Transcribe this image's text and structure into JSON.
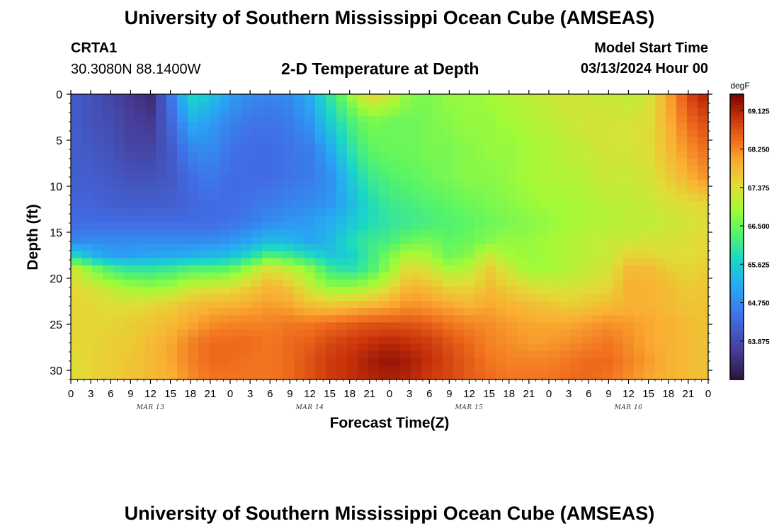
{
  "page": {
    "title": "University of Southern Mississippi Ocean Cube (AMSEAS)",
    "footer_title": "University of Southern Mississippi Ocean Cube (AMSEAS)",
    "station": "CRTA1",
    "coords": "30.3080N  88.1400W",
    "model_start_label": "Model Start Time",
    "model_start_value": "03/13/2024 Hour 00"
  },
  "chart_data": {
    "type": "heatmap",
    "title": "2-D Temperature at Depth",
    "xlabel": "Forecast Time(Z)",
    "ylabel": "Depth (ft)",
    "units": "degF",
    "x_range_hours": [
      0,
      96
    ],
    "y_range_ft": [
      0,
      31
    ],
    "y_inverted": true,
    "x_tick_labels": [
      "0",
      "3",
      "6",
      "9",
      "12",
      "15",
      "18",
      "21",
      "0",
      "3",
      "6",
      "9",
      "12",
      "15",
      "18",
      "21",
      "0",
      "3",
      "6",
      "9",
      "12",
      "15",
      "18",
      "21",
      "0",
      "3",
      "6",
      "9",
      "12",
      "15",
      "18",
      "21",
      "0"
    ],
    "y_tick_labels": [
      "0",
      "5",
      "10",
      "15",
      "20",
      "25",
      "30"
    ],
    "date_labels": [
      {
        "label": "MAR 13",
        "hour": 12
      },
      {
        "label": "MAR 14",
        "hour": 36
      },
      {
        "label": "MAR 15",
        "hour": 60
      },
      {
        "label": "MAR 16",
        "hour": 84
      }
    ],
    "colorbar": {
      "min": 63.0,
      "max": 69.5,
      "tick_values": [
        69.125,
        68.25,
        67.375,
        66.5,
        65.625,
        64.75,
        63.875
      ],
      "tick_labels": [
        "69.125",
        "68.250",
        "67.375",
        "66.500",
        "65.625",
        "64.750",
        "63.875"
      ]
    },
    "depths_ft": [
      0,
      3,
      6,
      9,
      12,
      14,
      16,
      17.5,
      19,
      21,
      23,
      25,
      27,
      29,
      31
    ],
    "hours": [
      0,
      3,
      6,
      9,
      12,
      15,
      18,
      21,
      24,
      27,
      30,
      33,
      36,
      39,
      42,
      45,
      48,
      51,
      54,
      57,
      60,
      63,
      66,
      69,
      72,
      75,
      78,
      81,
      84,
      87,
      90,
      93,
      96
    ],
    "values_degF": [
      [
        64.2,
        64.0,
        63.8,
        63.6,
        63.4,
        64.5,
        65.8,
        65.5,
        65.0,
        64.8,
        64.7,
        64.8,
        65.2,
        66.0,
        66.8,
        67.5,
        67.3,
        66.7,
        66.6,
        66.8,
        66.8,
        66.9,
        67.0,
        67.1,
        67.2,
        67.3,
        67.2,
        67.2,
        67.1,
        67.3,
        68.0,
        68.8,
        69.2
      ],
      [
        64.2,
        64.0,
        63.9,
        63.7,
        63.6,
        64.3,
        65.2,
        65.0,
        64.7,
        64.5,
        64.5,
        64.6,
        64.9,
        65.6,
        66.2,
        66.6,
        66.5,
        66.5,
        66.6,
        66.7,
        66.8,
        66.8,
        66.9,
        67.0,
        67.1,
        67.2,
        67.3,
        67.3,
        67.3,
        67.4,
        67.9,
        68.5,
        68.8
      ],
      [
        64.2,
        64.1,
        64.0,
        63.8,
        63.8,
        64.1,
        64.7,
        64.8,
        64.5,
        64.4,
        64.4,
        64.5,
        64.6,
        65.1,
        65.9,
        66.4,
        66.5,
        66.5,
        66.6,
        66.6,
        66.7,
        66.8,
        66.8,
        66.9,
        67.0,
        67.1,
        67.2,
        67.3,
        67.3,
        67.4,
        67.8,
        68.2,
        68.5
      ],
      [
        64.2,
        64.2,
        64.1,
        64.0,
        64.0,
        64.1,
        64.4,
        64.6,
        64.4,
        64.4,
        64.4,
        64.5,
        64.6,
        64.8,
        65.5,
        66.1,
        66.3,
        66.4,
        66.5,
        66.6,
        66.7,
        66.7,
        66.8,
        66.9,
        67.0,
        67.0,
        67.1,
        67.2,
        67.2,
        67.3,
        67.6,
        67.9,
        68.2
      ],
      [
        64.3,
        64.3,
        64.2,
        64.2,
        64.2,
        64.2,
        64.3,
        64.4,
        64.4,
        64.5,
        64.6,
        64.7,
        64.8,
        64.9,
        65.3,
        65.8,
        66.1,
        66.2,
        66.3,
        66.4,
        66.5,
        66.6,
        66.7,
        66.8,
        66.9,
        66.9,
        67.0,
        67.1,
        67.1,
        67.2,
        67.3,
        67.4,
        67.5
      ],
      [
        64.4,
        64.4,
        64.4,
        64.4,
        64.4,
        64.4,
        64.4,
        64.4,
        64.5,
        64.6,
        64.8,
        64.9,
        65.0,
        65.2,
        65.5,
        65.8,
        66.0,
        66.1,
        66.2,
        66.3,
        66.4,
        66.5,
        66.6,
        66.7,
        66.8,
        66.9,
        67.0,
        67.0,
        67.1,
        67.1,
        67.2,
        67.3,
        67.4
      ],
      [
        64.7,
        64.8,
        64.8,
        64.8,
        64.8,
        64.8,
        64.8,
        64.8,
        64.9,
        65.1,
        65.4,
        65.3,
        65.1,
        65.3,
        65.8,
        66.1,
        66.2,
        66.5,
        66.6,
        66.4,
        66.5,
        66.7,
        66.8,
        66.8,
        66.9,
        67.0,
        67.1,
        67.2,
        67.2,
        67.3,
        67.3,
        67.4,
        67.5
      ],
      [
        65.8,
        65.3,
        65.0,
        65.0,
        65.1,
        65.1,
        65.2,
        65.3,
        65.4,
        65.8,
        66.3,
        66.1,
        65.8,
        65.5,
        65.6,
        66.1,
        66.6,
        67.0,
        66.9,
        66.5,
        66.7,
        67.2,
        66.9,
        66.8,
        66.9,
        67.0,
        67.1,
        67.2,
        67.5,
        67.5,
        67.4,
        67.4,
        67.5
      ],
      [
        67.3,
        66.7,
        66.2,
        66.0,
        66.0,
        66.1,
        66.3,
        66.3,
        66.4,
        66.9,
        67.4,
        67.1,
        66.7,
        66.1,
        65.9,
        66.2,
        66.8,
        67.5,
        67.3,
        66.9,
        67.1,
        67.6,
        67.2,
        66.9,
        66.9,
        67.0,
        67.2,
        67.3,
        67.8,
        67.8,
        67.6,
        67.5,
        67.6
      ],
      [
        67.5,
        67.3,
        67.1,
        66.9,
        66.8,
        66.9,
        67.2,
        67.3,
        67.4,
        67.6,
        67.9,
        67.7,
        67.2,
        66.8,
        66.8,
        67.0,
        67.4,
        67.9,
        67.8,
        67.5,
        67.5,
        67.8,
        67.6,
        67.4,
        67.3,
        67.3,
        67.4,
        67.5,
        67.9,
        67.9,
        67.8,
        67.6,
        67.7
      ],
      [
        67.5,
        67.5,
        67.4,
        67.4,
        67.5,
        67.6,
        67.8,
        67.9,
        67.9,
        68.0,
        68.1,
        68.0,
        67.8,
        67.7,
        67.8,
        67.9,
        68.0,
        68.2,
        68.1,
        68.0,
        67.9,
        68.0,
        67.9,
        67.8,
        67.7,
        67.6,
        67.7,
        67.8,
        67.9,
        67.9,
        67.8,
        67.7,
        67.7
      ],
      [
        67.5,
        67.5,
        67.5,
        67.6,
        67.7,
        67.8,
        68.0,
        68.2,
        68.3,
        68.3,
        68.3,
        68.4,
        68.4,
        68.5,
        68.6,
        68.7,
        68.7,
        68.7,
        68.6,
        68.4,
        68.3,
        68.2,
        68.1,
        68.0,
        68.0,
        68.0,
        68.1,
        68.2,
        68.1,
        68.0,
        67.9,
        67.8,
        67.7
      ],
      [
        67.5,
        67.5,
        67.6,
        67.6,
        67.8,
        68.0,
        68.3,
        68.5,
        68.5,
        68.5,
        68.4,
        68.5,
        68.6,
        68.8,
        68.9,
        69.0,
        69.1,
        69.0,
        68.9,
        68.7,
        68.5,
        68.3,
        68.2,
        68.1,
        68.1,
        68.2,
        68.3,
        68.4,
        68.2,
        68.0,
        67.9,
        67.8,
        67.7
      ],
      [
        67.4,
        67.5,
        67.6,
        67.7,
        67.8,
        68.0,
        68.3,
        68.5,
        68.5,
        68.4,
        68.4,
        68.5,
        68.7,
        68.9,
        69.0,
        69.2,
        69.3,
        69.2,
        69.0,
        68.8,
        68.6,
        68.4,
        68.3,
        68.3,
        68.3,
        68.4,
        68.5,
        68.5,
        68.3,
        68.1,
        67.9,
        67.8,
        67.7
      ],
      [
        67.4,
        67.5,
        67.6,
        67.7,
        67.8,
        67.9,
        68.2,
        68.4,
        68.4,
        68.4,
        68.4,
        68.5,
        68.7,
        68.9,
        69.0,
        69.1,
        69.2,
        69.1,
        68.9,
        68.8,
        68.6,
        68.5,
        68.4,
        68.4,
        68.4,
        68.5,
        68.5,
        68.4,
        68.2,
        68.0,
        67.9,
        67.8,
        67.7
      ]
    ]
  }
}
